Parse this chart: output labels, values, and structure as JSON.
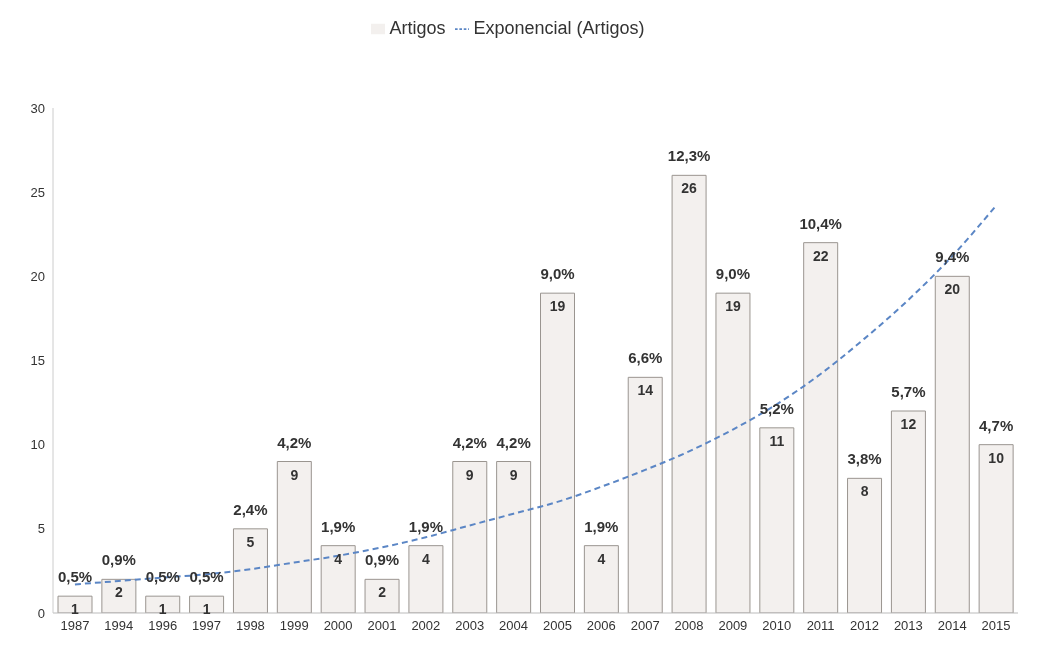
{
  "chart_data": {
    "type": "bar",
    "categories": [
      "1987",
      "1994",
      "1996",
      "1997",
      "1998",
      "1999",
      "2000",
      "2001",
      "2002",
      "2003",
      "2004",
      "2005",
      "2006",
      "2007",
      "2008",
      "2009",
      "2010",
      "2011",
      "2012",
      "2013",
      "2014",
      "2015"
    ],
    "series": [
      {
        "name": "Artigos",
        "color": "#f3f0ee",
        "values": [
          1,
          2,
          1,
          1,
          5,
          9,
          4,
          2,
          4,
          9,
          9,
          19,
          4,
          14,
          26,
          19,
          11,
          22,
          8,
          12,
          20,
          10
        ],
        "value_labels": [
          "1",
          "2",
          "1",
          "1",
          "5",
          "9",
          "4",
          "2",
          "4",
          "9",
          "9",
          "19",
          "4",
          "14",
          "26",
          "19",
          "11",
          "22",
          "8",
          "12",
          "20",
          "10"
        ]
      },
      {
        "name": "Exponencial (Artigos)",
        "type": "line",
        "color": "#5b86c5",
        "values": [
          1.7,
          1.9,
          2.1,
          2.3,
          2.6,
          3.0,
          3.4,
          3.9,
          4.5,
          5.2,
          5.9,
          6.6,
          7.5,
          8.5,
          9.6,
          10.9,
          12.4,
          14.2,
          16.3,
          18.6,
          21.2,
          24.2
        ]
      }
    ],
    "ylim": [
      0,
      30
    ],
    "yticks": [
      0,
      5,
      10,
      15,
      20,
      25,
      30
    ],
    "grid": false,
    "legend": "top",
    "marker": "none",
    "line_style": "dashed",
    "annotations": [
      {
        "text": "0,5%",
        "x": "1987",
        "y": 1
      },
      {
        "text": "0,9%",
        "x": "1994",
        "y": 2
      },
      {
        "text": "0,5%",
        "x": "1996",
        "y": 1
      },
      {
        "text": "0,5%",
        "x": "1997",
        "y": 1
      },
      {
        "text": "2,4%",
        "x": "1998",
        "y": 5
      },
      {
        "text": "4,2%",
        "x": "1999",
        "y": 9
      },
      {
        "text": "1,9%",
        "x": "2000",
        "y": 4
      },
      {
        "text": "0,9%",
        "x": "2001",
        "y": 2
      },
      {
        "text": "1,9%",
        "x": "2002",
        "y": 4
      },
      {
        "text": "4,2%",
        "x": "2003",
        "y": 9
      },
      {
        "text": "4,2%",
        "x": "2004",
        "y": 9
      },
      {
        "text": "9,0%",
        "x": "2005",
        "y": 19
      },
      {
        "text": "1,9%",
        "x": "2006",
        "y": 4
      },
      {
        "text": "6,6%",
        "x": "2007",
        "y": 14
      },
      {
        "text": "12,3%",
        "x": "2008",
        "y": 26
      },
      {
        "text": "9,0%",
        "x": "2009",
        "y": 19
      },
      {
        "text": "5,2%",
        "x": "2010",
        "y": 11
      },
      {
        "text": "10,4%",
        "x": "2011",
        "y": 22
      },
      {
        "text": "3,8%",
        "x": "2012",
        "y": 8
      },
      {
        "text": "5,7%",
        "x": "2013",
        "y": 12
      },
      {
        "text": "9,4%",
        "x": "2014",
        "y": 20
      },
      {
        "text": "4,7%",
        "x": "2015",
        "y": 10
      }
    ]
  }
}
